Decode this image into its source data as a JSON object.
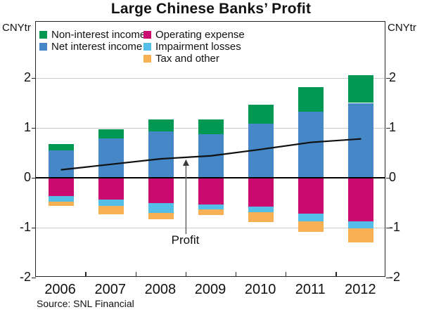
{
  "source": "Source: SNL Financial",
  "chart_data": {
    "type": "bar",
    "stacked": true,
    "title": "Large Chinese Banks’ Profit",
    "unit": "CNYtr",
    "categories": [
      "2006",
      "2007",
      "2008",
      "2009",
      "2010",
      "2011",
      "2012"
    ],
    "ylim": [
      -2,
      3.1
    ],
    "yticks": [
      "2",
      "1",
      "0",
      "-1",
      "-2"
    ],
    "ytick_values": [
      2,
      1,
      0,
      -1,
      -2
    ],
    "grid": "horizontal",
    "legend_position": "top-left-inside",
    "series": [
      {
        "name": "Net interest income",
        "color": "#4687C7",
        "values": [
          0.55,
          0.79,
          0.93,
          0.88,
          1.08,
          1.32,
          1.5
        ]
      },
      {
        "name": "Non-interest income",
        "color": "#009853",
        "values": [
          0.13,
          0.18,
          0.24,
          0.29,
          0.38,
          0.5,
          0.56
        ]
      },
      {
        "name": "Operating expense",
        "color": "#CA0A6E",
        "values": [
          -0.36,
          -0.43,
          -0.51,
          -0.53,
          -0.58,
          -0.72,
          -0.87
        ]
      },
      {
        "name": "Impairment losses",
        "color": "#55BEE8",
        "values": [
          -0.12,
          -0.14,
          -0.2,
          -0.1,
          -0.11,
          -0.16,
          -0.14
        ]
      },
      {
        "name": "Tax and other",
        "color": "#F8B054",
        "values": [
          -0.08,
          -0.16,
          -0.12,
          -0.12,
          -0.2,
          -0.21,
          -0.29
        ]
      }
    ],
    "line_series": {
      "name": "Profit",
      "color": "#111111",
      "values": [
        0.16,
        0.27,
        0.38,
        0.44,
        0.57,
        0.71,
        0.78
      ]
    },
    "annotation": {
      "label": "Profit",
      "points_to": "profit-line"
    }
  },
  "legend": {
    "columns": [
      [
        {
          "label": "Non-interest income",
          "color": "#009853"
        },
        {
          "label": "Net interest income",
          "color": "#4687C7"
        }
      ],
      [
        {
          "label": "Operating expense",
          "color": "#CA0A6E"
        },
        {
          "label": "Impairment losses",
          "color": "#55BEE8"
        },
        {
          "label": "Tax and other",
          "color": "#F8B054"
        }
      ]
    ]
  }
}
